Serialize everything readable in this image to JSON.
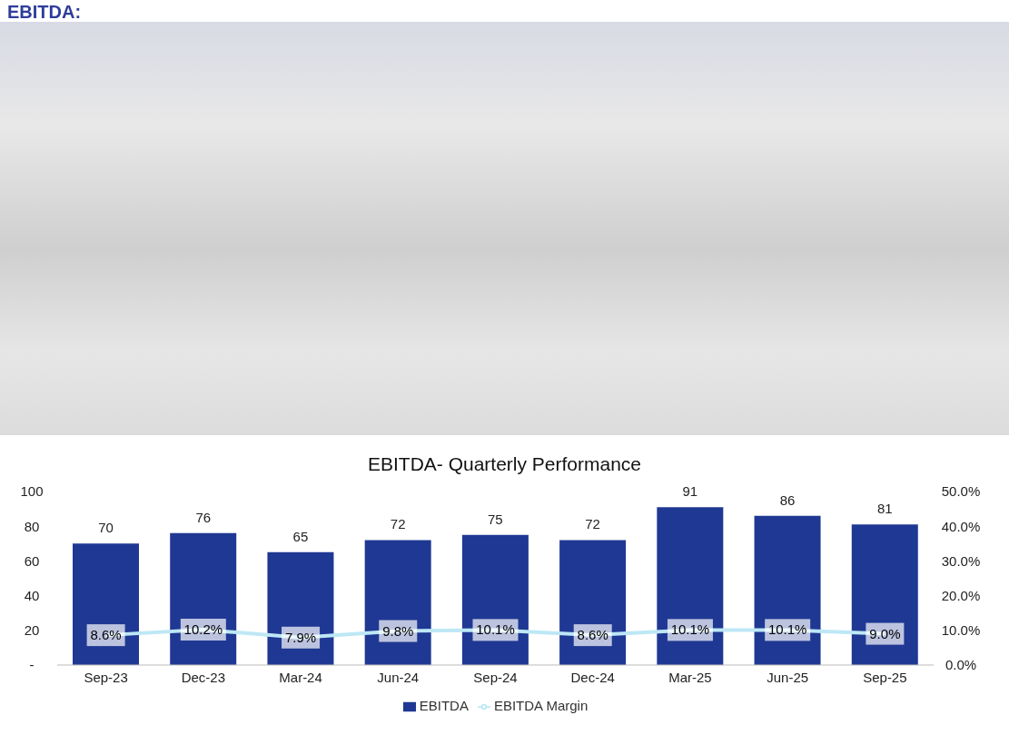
{
  "chart_data": {
    "type": "bar",
    "title": "EBITDA:",
    "subtitle": "EBITDA- Quarterly Performance",
    "categories": [
      "Sep-23",
      "Dec-23",
      "Mar-24",
      "Jun-24",
      "Sep-24",
      "Dec-24",
      "Mar-25",
      "Jun-25",
      "Sep-25"
    ],
    "series": [
      {
        "name": "EBITDA",
        "color": "#1f3893",
        "values": [
          70,
          76,
          65,
          72,
          75,
          72,
          91,
          86,
          81
        ],
        "value_labels": [
          "70",
          "76",
          "65",
          "72",
          "75",
          "72",
          "91",
          "86",
          "81"
        ]
      },
      {
        "name": "EBITDA Margin",
        "type": "line",
        "axis": "y2",
        "color": "#bde7f5",
        "values": [
          8.6,
          10.2,
          7.9,
          9.8,
          10.1,
          8.6,
          10.1,
          10.1,
          9.0
        ],
        "value_labels": [
          "8.6%",
          "10.2%",
          "7.9%",
          "9.8%",
          "10.1%",
          "8.6%",
          "10.1%",
          "10.1%",
          "9.0%"
        ]
      }
    ],
    "ylim": [
      0,
      100
    ],
    "yticks": [
      {
        "value": 0,
        "label": "-"
      },
      20,
      40,
      60,
      80,
      100
    ],
    "y2lim": [
      0,
      50
    ],
    "y2ticks": [
      {
        "value": 0,
        "label": "0.0%"
      },
      {
        "value": 10,
        "label": "10.0%"
      },
      {
        "value": 20,
        "label": "20.0%"
      },
      {
        "value": 30,
        "label": "30.0%"
      },
      {
        "value": 40,
        "label": "40.0%"
      },
      {
        "value": 50,
        "label": "50.0%"
      }
    ],
    "grid": false,
    "legend": "bottom",
    "line_style": "solid"
  }
}
